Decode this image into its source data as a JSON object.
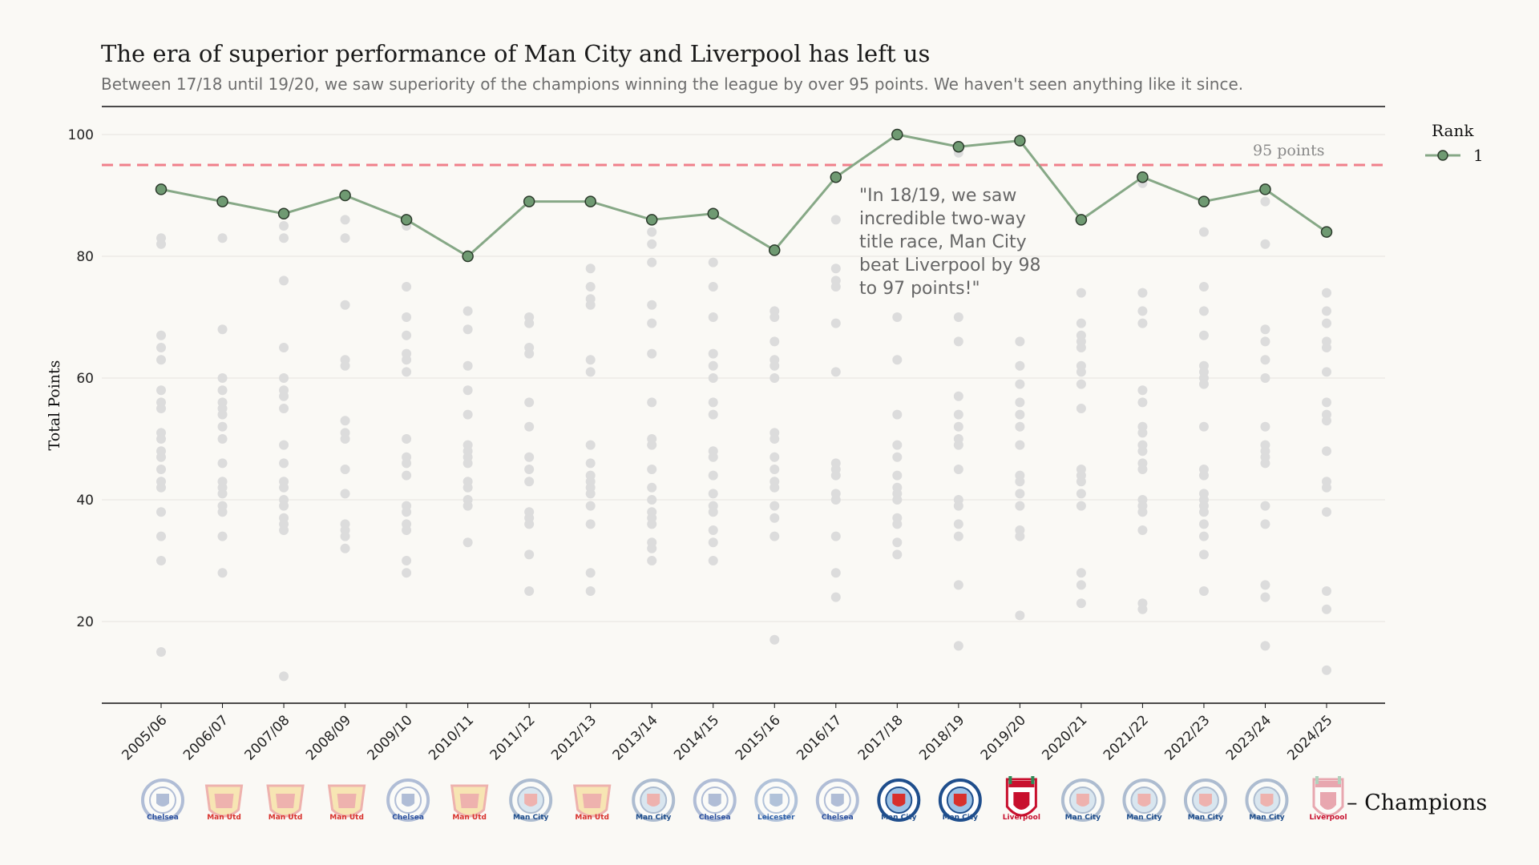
{
  "chart_data": {
    "type": "scatter",
    "title": "The era of superior performance of Man City and Liverpool has left us",
    "subtitle": "Between 17/18 until 19/20, we saw superiority of the champions winning the league by over 95 points. We haven't seen anything like it since.",
    "xlabel": "",
    "ylabel": "Total Points",
    "ylim": [
      7,
      105
    ],
    "yticks": [
      20,
      40,
      60,
      80,
      100
    ],
    "grid": true,
    "categories": [
      "2005/06",
      "2006/07",
      "2007/08",
      "2008/09",
      "2009/10",
      "2010/11",
      "2011/12",
      "2012/13",
      "2013/14",
      "2014/15",
      "2015/16",
      "2016/17",
      "2017/18",
      "2018/19",
      "2019/20",
      "2020/21",
      "2021/22",
      "2022/23",
      "2023/24",
      "2024/25"
    ],
    "series": [
      {
        "name": "1",
        "type": "line",
        "color": "#86a886",
        "values": [
          91,
          89,
          87,
          90,
          86,
          80,
          89,
          89,
          86,
          87,
          81,
          93,
          100,
          98,
          99,
          86,
          93,
          89,
          91,
          84
        ]
      }
    ],
    "other_teams": [
      [
        83,
        82,
        67,
        65,
        63,
        58,
        56,
        55,
        51,
        50,
        48,
        47,
        45,
        43,
        42,
        38,
        34,
        30,
        15
      ],
      [
        83,
        68,
        60,
        58,
        56,
        55,
        54,
        52,
        50,
        46,
        43,
        42,
        41,
        39,
        38,
        34,
        28
      ],
      [
        85,
        83,
        76,
        65,
        60,
        58,
        57,
        55,
        49,
        46,
        43,
        42,
        40,
        39,
        37,
        36,
        35,
        11
      ],
      [
        86,
        83,
        72,
        63,
        62,
        53,
        51,
        50,
        45,
        41,
        36,
        35,
        34,
        32
      ],
      [
        85,
        75,
        70,
        67,
        64,
        63,
        61,
        50,
        47,
        46,
        44,
        39,
        38,
        36,
        35,
        30,
        28
      ],
      [
        71,
        68,
        62,
        58,
        54,
        49,
        48,
        47,
        46,
        43,
        42,
        40,
        39,
        33
      ],
      [
        70,
        69,
        65,
        64,
        56,
        52,
        47,
        45,
        43,
        38,
        37,
        36,
        31,
        25
      ],
      [
        78,
        75,
        73,
        72,
        63,
        61,
        49,
        46,
        44,
        43,
        42,
        41,
        39,
        36,
        28,
        25
      ],
      [
        84,
        82,
        79,
        72,
        69,
        64,
        56,
        50,
        49,
        45,
        42,
        40,
        38,
        37,
        36,
        33,
        32,
        30
      ],
      [
        79,
        75,
        70,
        64,
        62,
        60,
        56,
        54,
        48,
        47,
        44,
        41,
        39,
        38,
        35,
        33,
        30
      ],
      [
        71,
        70,
        66,
        63,
        62,
        60,
        51,
        50,
        47,
        45,
        43,
        42,
        39,
        37,
        34,
        17
      ],
      [
        86,
        78,
        76,
        75,
        69,
        61,
        46,
        45,
        44,
        41,
        40,
        34,
        28,
        24
      ],
      [
        70,
        63,
        54,
        49,
        47,
        44,
        42,
        41,
        40,
        37,
        36,
        33,
        31
      ],
      [
        97,
        70,
        66,
        57,
        54,
        52,
        50,
        49,
        45,
        40,
        39,
        36,
        34,
        26,
        16
      ],
      [
        66,
        62,
        59,
        56,
        54,
        52,
        49,
        44,
        43,
        41,
        39,
        35,
        34,
        21
      ],
      [
        74,
        69,
        67,
        66,
        65,
        62,
        61,
        59,
        55,
        45,
        44,
        43,
        41,
        39,
        28,
        26,
        23
      ],
      [
        92,
        74,
        71,
        69,
        58,
        56,
        52,
        51,
        49,
        48,
        46,
        45,
        40,
        39,
        38,
        35,
        23,
        22
      ],
      [
        84,
        75,
        71,
        67,
        62,
        61,
        60,
        59,
        52,
        45,
        44,
        41,
        40,
        39,
        38,
        36,
        34,
        31,
        25
      ],
      [
        89,
        82,
        68,
        66,
        63,
        60,
        52,
        49,
        48,
        47,
        46,
        39,
        36,
        26,
        24,
        16
      ],
      [
        74,
        71,
        69,
        66,
        65,
        61,
        56,
        54,
        53,
        48,
        43,
        42,
        38,
        25,
        22,
        12
      ]
    ],
    "champions": [
      "Chelsea",
      "Man Utd",
      "Man Utd",
      "Man Utd",
      "Chelsea",
      "Man Utd",
      "Man City",
      "Man Utd",
      "Man City",
      "Chelsea",
      "Leicester",
      "Chelsea",
      "Man City",
      "Man City",
      "Liverpool",
      "Man City",
      "Man City",
      "Man City",
      "Man City",
      "Liverpool"
    ],
    "champions_highlighted": [
      false,
      false,
      false,
      false,
      false,
      false,
      false,
      false,
      false,
      false,
      false,
      false,
      true,
      true,
      true,
      false,
      false,
      false,
      false,
      false
    ],
    "reference_line": {
      "value": 95,
      "label": "95 points",
      "color": "#f0808a"
    },
    "annotation": [
      "\"In 18/19, we saw",
      "incredible two-way",
      "title race, Man City",
      "beat Liverpool by 98",
      "to 97 points!\""
    ],
    "legend": {
      "title": "Rank",
      "entries": [
        "1"
      ],
      "placement": "right"
    },
    "champions_label": "– Champions",
    "other_color": "#dcdcdc",
    "team_colors": {
      "Chelsea": "#2a4f9e",
      "Man Utd": "#d8312c",
      "Man City": "#1f4e8c",
      "Liverpool": "#c8102e",
      "Leicester": "#2b5ea8"
    }
  }
}
